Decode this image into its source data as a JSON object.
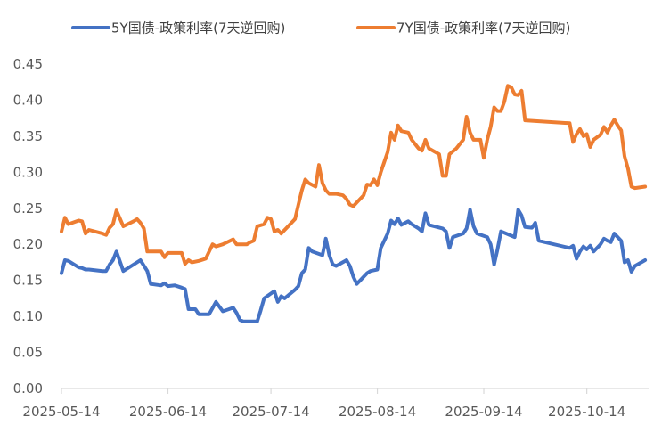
{
  "chart_data": {
    "type": "line",
    "title": "",
    "xlabel": "",
    "ylabel": "",
    "ylim": [
      0,
      0.45
    ],
    "yticks": [
      "0.00",
      "0.05",
      "0.10",
      "0.15",
      "0.20",
      "0.25",
      "0.30",
      "0.35",
      "0.40",
      "0.45"
    ],
    "xticks": [
      "2025-05-14",
      "2025-06-14",
      "2025-07-14",
      "2025-08-14",
      "2025-09-14",
      "2025-10-14"
    ],
    "legend_position": "top",
    "grid": false,
    "series": [
      {
        "name": "5Y国债-政策利率(7天逆回购)",
        "color": "#4472C4",
        "points": [
          [
            "2025-05-14",
            0.16
          ],
          [
            "2025-05-15",
            0.178
          ],
          [
            "2025-05-16",
            0.177
          ],
          [
            "2025-05-19",
            0.168
          ],
          [
            "2025-05-20",
            0.167
          ],
          [
            "2025-05-21",
            0.165
          ],
          [
            "2025-05-22",
            0.165
          ],
          [
            "2025-05-26",
            0.163
          ],
          [
            "2025-05-27",
            0.163
          ],
          [
            "2025-05-28",
            0.172
          ],
          [
            "2025-05-29",
            0.178
          ],
          [
            "2025-05-30",
            0.19
          ],
          [
            "2025-06-01",
            0.163
          ],
          [
            "2025-06-04",
            0.172
          ],
          [
            "2025-06-06",
            0.178
          ],
          [
            "2025-06-08",
            0.163
          ],
          [
            "2025-06-09",
            0.145
          ],
          [
            "2025-06-12",
            0.143
          ],
          [
            "2025-06-13",
            0.146
          ],
          [
            "2025-06-14",
            0.142
          ],
          [
            "2025-06-16",
            0.143
          ],
          [
            "2025-06-18",
            0.14
          ],
          [
            "2025-06-19",
            0.138
          ],
          [
            "2025-06-20",
            0.11
          ],
          [
            "2025-06-22",
            0.11
          ],
          [
            "2025-06-23",
            0.103
          ],
          [
            "2025-06-25",
            0.103
          ],
          [
            "2025-06-26",
            0.103
          ],
          [
            "2025-06-28",
            0.12
          ],
          [
            "2025-06-30",
            0.107
          ],
          [
            "2025-07-03",
            0.112
          ],
          [
            "2025-07-04",
            0.105
          ],
          [
            "2025-07-05",
            0.095
          ],
          [
            "2025-07-06",
            0.093
          ],
          [
            "2025-07-09",
            0.093
          ],
          [
            "2025-07-10",
            0.093
          ],
          [
            "2025-07-11",
            0.108
          ],
          [
            "2025-07-12",
            0.125
          ],
          [
            "2025-07-15",
            0.135
          ],
          [
            "2025-07-16",
            0.12
          ],
          [
            "2025-07-17",
            0.128
          ],
          [
            "2025-07-18",
            0.125
          ],
          [
            "2025-07-21",
            0.137
          ],
          [
            "2025-07-22",
            0.142
          ],
          [
            "2025-07-23",
            0.16
          ],
          [
            "2025-07-24",
            0.165
          ],
          [
            "2025-07-25",
            0.195
          ],
          [
            "2025-07-26",
            0.19
          ],
          [
            "2025-07-29",
            0.185
          ],
          [
            "2025-07-30",
            0.208
          ],
          [
            "2025-07-31",
            0.185
          ],
          [
            "2025-08-01",
            0.172
          ],
          [
            "2025-08-02",
            0.17
          ],
          [
            "2025-08-05",
            0.178
          ],
          [
            "2025-08-06",
            0.17
          ],
          [
            "2025-08-07",
            0.155
          ],
          [
            "2025-08-08",
            0.145
          ],
          [
            "2025-08-09",
            0.15
          ],
          [
            "2025-08-11",
            0.16
          ],
          [
            "2025-08-12",
            0.163
          ],
          [
            "2025-08-14",
            0.165
          ],
          [
            "2025-08-15",
            0.195
          ],
          [
            "2025-08-17",
            0.215
          ],
          [
            "2025-08-18",
            0.233
          ],
          [
            "2025-08-19",
            0.228
          ],
          [
            "2025-08-20",
            0.236
          ],
          [
            "2025-08-21",
            0.227
          ],
          [
            "2025-08-23",
            0.232
          ],
          [
            "2025-08-24",
            0.228
          ],
          [
            "2025-08-26",
            0.222
          ],
          [
            "2025-08-27",
            0.218
          ],
          [
            "2025-08-28",
            0.243
          ],
          [
            "2025-08-29",
            0.227
          ],
          [
            "2025-09-02",
            0.222
          ],
          [
            "2025-09-03",
            0.218
          ],
          [
            "2025-09-04",
            0.195
          ],
          [
            "2025-09-05",
            0.21
          ],
          [
            "2025-09-08",
            0.215
          ],
          [
            "2025-09-09",
            0.222
          ],
          [
            "2025-09-10",
            0.248
          ],
          [
            "2025-09-11",
            0.225
          ],
          [
            "2025-09-12",
            0.215
          ],
          [
            "2025-09-15",
            0.21
          ],
          [
            "2025-09-16",
            0.2
          ],
          [
            "2025-09-17",
            0.172
          ],
          [
            "2025-09-18",
            0.193
          ],
          [
            "2025-09-19",
            0.218
          ],
          [
            "2025-09-22",
            0.212
          ],
          [
            "2025-09-23",
            0.21
          ],
          [
            "2025-09-24",
            0.248
          ],
          [
            "2025-09-25",
            0.24
          ],
          [
            "2025-09-26",
            0.224
          ],
          [
            "2025-09-28",
            0.223
          ],
          [
            "2025-09-29",
            0.23
          ],
          [
            "2025-09-30",
            0.205
          ],
          [
            "2025-10-09",
            0.195
          ],
          [
            "2025-10-10",
            0.198
          ],
          [
            "2025-10-11",
            0.18
          ],
          [
            "2025-10-12",
            0.19
          ],
          [
            "2025-10-13",
            0.197
          ],
          [
            "2025-10-14",
            0.193
          ],
          [
            "2025-10-15",
            0.198
          ],
          [
            "2025-10-16",
            0.19
          ],
          [
            "2025-10-18",
            0.2
          ],
          [
            "2025-10-19",
            0.208
          ],
          [
            "2025-10-20",
            0.205
          ],
          [
            "2025-10-21",
            0.203
          ],
          [
            "2025-10-22",
            0.215
          ],
          [
            "2025-10-23",
            0.21
          ],
          [
            "2025-10-24",
            0.205
          ],
          [
            "2025-10-25",
            0.175
          ],
          [
            "2025-10-26",
            0.178
          ],
          [
            "2025-10-27",
            0.162
          ],
          [
            "2025-10-28",
            0.17
          ],
          [
            "2025-10-31",
            0.178
          ]
        ]
      },
      {
        "name": "7Y国债-政策利率(7天逆回购)",
        "color": "#ED7D31",
        "points": [
          [
            "2025-05-14",
            0.218
          ],
          [
            "2025-05-15",
            0.237
          ],
          [
            "2025-05-16",
            0.228
          ],
          [
            "2025-05-19",
            0.233
          ],
          [
            "2025-05-20",
            0.232
          ],
          [
            "2025-05-21",
            0.215
          ],
          [
            "2025-05-22",
            0.22
          ],
          [
            "2025-05-26",
            0.215
          ],
          [
            "2025-05-27",
            0.213
          ],
          [
            "2025-05-28",
            0.223
          ],
          [
            "2025-05-29",
            0.228
          ],
          [
            "2025-05-30",
            0.247
          ],
          [
            "2025-06-01",
            0.225
          ],
          [
            "2025-06-04",
            0.232
          ],
          [
            "2025-06-05",
            0.235
          ],
          [
            "2025-06-06",
            0.23
          ],
          [
            "2025-06-07",
            0.222
          ],
          [
            "2025-06-08",
            0.19
          ],
          [
            "2025-06-11",
            0.19
          ],
          [
            "2025-06-12",
            0.19
          ],
          [
            "2025-06-13",
            0.182
          ],
          [
            "2025-06-14",
            0.188
          ],
          [
            "2025-06-18",
            0.188
          ],
          [
            "2025-06-19",
            0.173
          ],
          [
            "2025-06-20",
            0.178
          ],
          [
            "2025-06-21",
            0.175
          ],
          [
            "2025-06-23",
            0.177
          ],
          [
            "2025-06-25",
            0.18
          ],
          [
            "2025-06-27",
            0.2
          ],
          [
            "2025-06-28",
            0.197
          ],
          [
            "2025-06-30",
            0.2
          ],
          [
            "2025-07-03",
            0.207
          ],
          [
            "2025-07-04",
            0.2
          ],
          [
            "2025-07-05",
            0.2
          ],
          [
            "2025-07-07",
            0.2
          ],
          [
            "2025-07-08",
            0.203
          ],
          [
            "2025-07-09",
            0.205
          ],
          [
            "2025-07-10",
            0.225
          ],
          [
            "2025-07-12",
            0.228
          ],
          [
            "2025-07-13",
            0.237
          ],
          [
            "2025-07-14",
            0.235
          ],
          [
            "2025-07-15",
            0.218
          ],
          [
            "2025-07-16",
            0.22
          ],
          [
            "2025-07-17",
            0.215
          ],
          [
            "2025-07-19",
            0.225
          ],
          [
            "2025-07-21",
            0.235
          ],
          [
            "2025-07-22",
            0.255
          ],
          [
            "2025-07-23",
            0.275
          ],
          [
            "2025-07-24",
            0.29
          ],
          [
            "2025-07-25",
            0.285
          ],
          [
            "2025-07-27",
            0.28
          ],
          [
            "2025-07-28",
            0.31
          ],
          [
            "2025-07-29",
            0.285
          ],
          [
            "2025-07-30",
            0.275
          ],
          [
            "2025-07-31",
            0.27
          ],
          [
            "2025-08-02",
            0.27
          ],
          [
            "2025-08-04",
            0.268
          ],
          [
            "2025-08-05",
            0.263
          ],
          [
            "2025-08-06",
            0.255
          ],
          [
            "2025-08-07",
            0.253
          ],
          [
            "2025-08-08",
            0.258
          ],
          [
            "2025-08-10",
            0.268
          ],
          [
            "2025-08-11",
            0.283
          ],
          [
            "2025-08-12",
            0.282
          ],
          [
            "2025-08-13",
            0.29
          ],
          [
            "2025-08-14",
            0.282
          ],
          [
            "2025-08-15",
            0.3
          ],
          [
            "2025-08-17",
            0.328
          ],
          [
            "2025-08-18",
            0.355
          ],
          [
            "2025-08-19",
            0.345
          ],
          [
            "2025-08-20",
            0.365
          ],
          [
            "2025-08-21",
            0.357
          ],
          [
            "2025-08-23",
            0.355
          ],
          [
            "2025-08-24",
            0.345
          ],
          [
            "2025-08-26",
            0.333
          ],
          [
            "2025-08-27",
            0.33
          ],
          [
            "2025-08-28",
            0.345
          ],
          [
            "2025-08-29",
            0.333
          ],
          [
            "2025-09-01",
            0.325
          ],
          [
            "2025-09-02",
            0.295
          ],
          [
            "2025-09-03",
            0.295
          ],
          [
            "2025-09-04",
            0.325
          ],
          [
            "2025-09-06",
            0.333
          ],
          [
            "2025-09-08",
            0.345
          ],
          [
            "2025-09-09",
            0.377
          ],
          [
            "2025-09-10",
            0.355
          ],
          [
            "2025-09-11",
            0.345
          ],
          [
            "2025-09-13",
            0.345
          ],
          [
            "2025-09-14",
            0.32
          ],
          [
            "2025-09-15",
            0.345
          ],
          [
            "2025-09-16",
            0.363
          ],
          [
            "2025-09-17",
            0.39
          ],
          [
            "2025-09-18",
            0.385
          ],
          [
            "2025-09-19",
            0.385
          ],
          [
            "2025-09-20",
            0.398
          ],
          [
            "2025-09-21",
            0.42
          ],
          [
            "2025-09-22",
            0.418
          ],
          [
            "2025-09-23",
            0.408
          ],
          [
            "2025-09-24",
            0.407
          ],
          [
            "2025-09-25",
            0.413
          ],
          [
            "2025-09-26",
            0.372
          ],
          [
            "2025-10-09",
            0.368
          ],
          [
            "2025-10-10",
            0.342
          ],
          [
            "2025-10-11",
            0.353
          ],
          [
            "2025-10-12",
            0.36
          ],
          [
            "2025-10-13",
            0.35
          ],
          [
            "2025-10-14",
            0.353
          ],
          [
            "2025-10-15",
            0.335
          ],
          [
            "2025-10-16",
            0.345
          ],
          [
            "2025-10-18",
            0.352
          ],
          [
            "2025-10-19",
            0.363
          ],
          [
            "2025-10-20",
            0.355
          ],
          [
            "2025-10-21",
            0.365
          ],
          [
            "2025-10-22",
            0.373
          ],
          [
            "2025-10-23",
            0.365
          ],
          [
            "2025-10-24",
            0.358
          ],
          [
            "2025-10-25",
            0.322
          ],
          [
            "2025-10-26",
            0.305
          ],
          [
            "2025-10-27",
            0.28
          ],
          [
            "2025-10-28",
            0.278
          ],
          [
            "2025-10-31",
            0.28
          ]
        ]
      }
    ]
  }
}
